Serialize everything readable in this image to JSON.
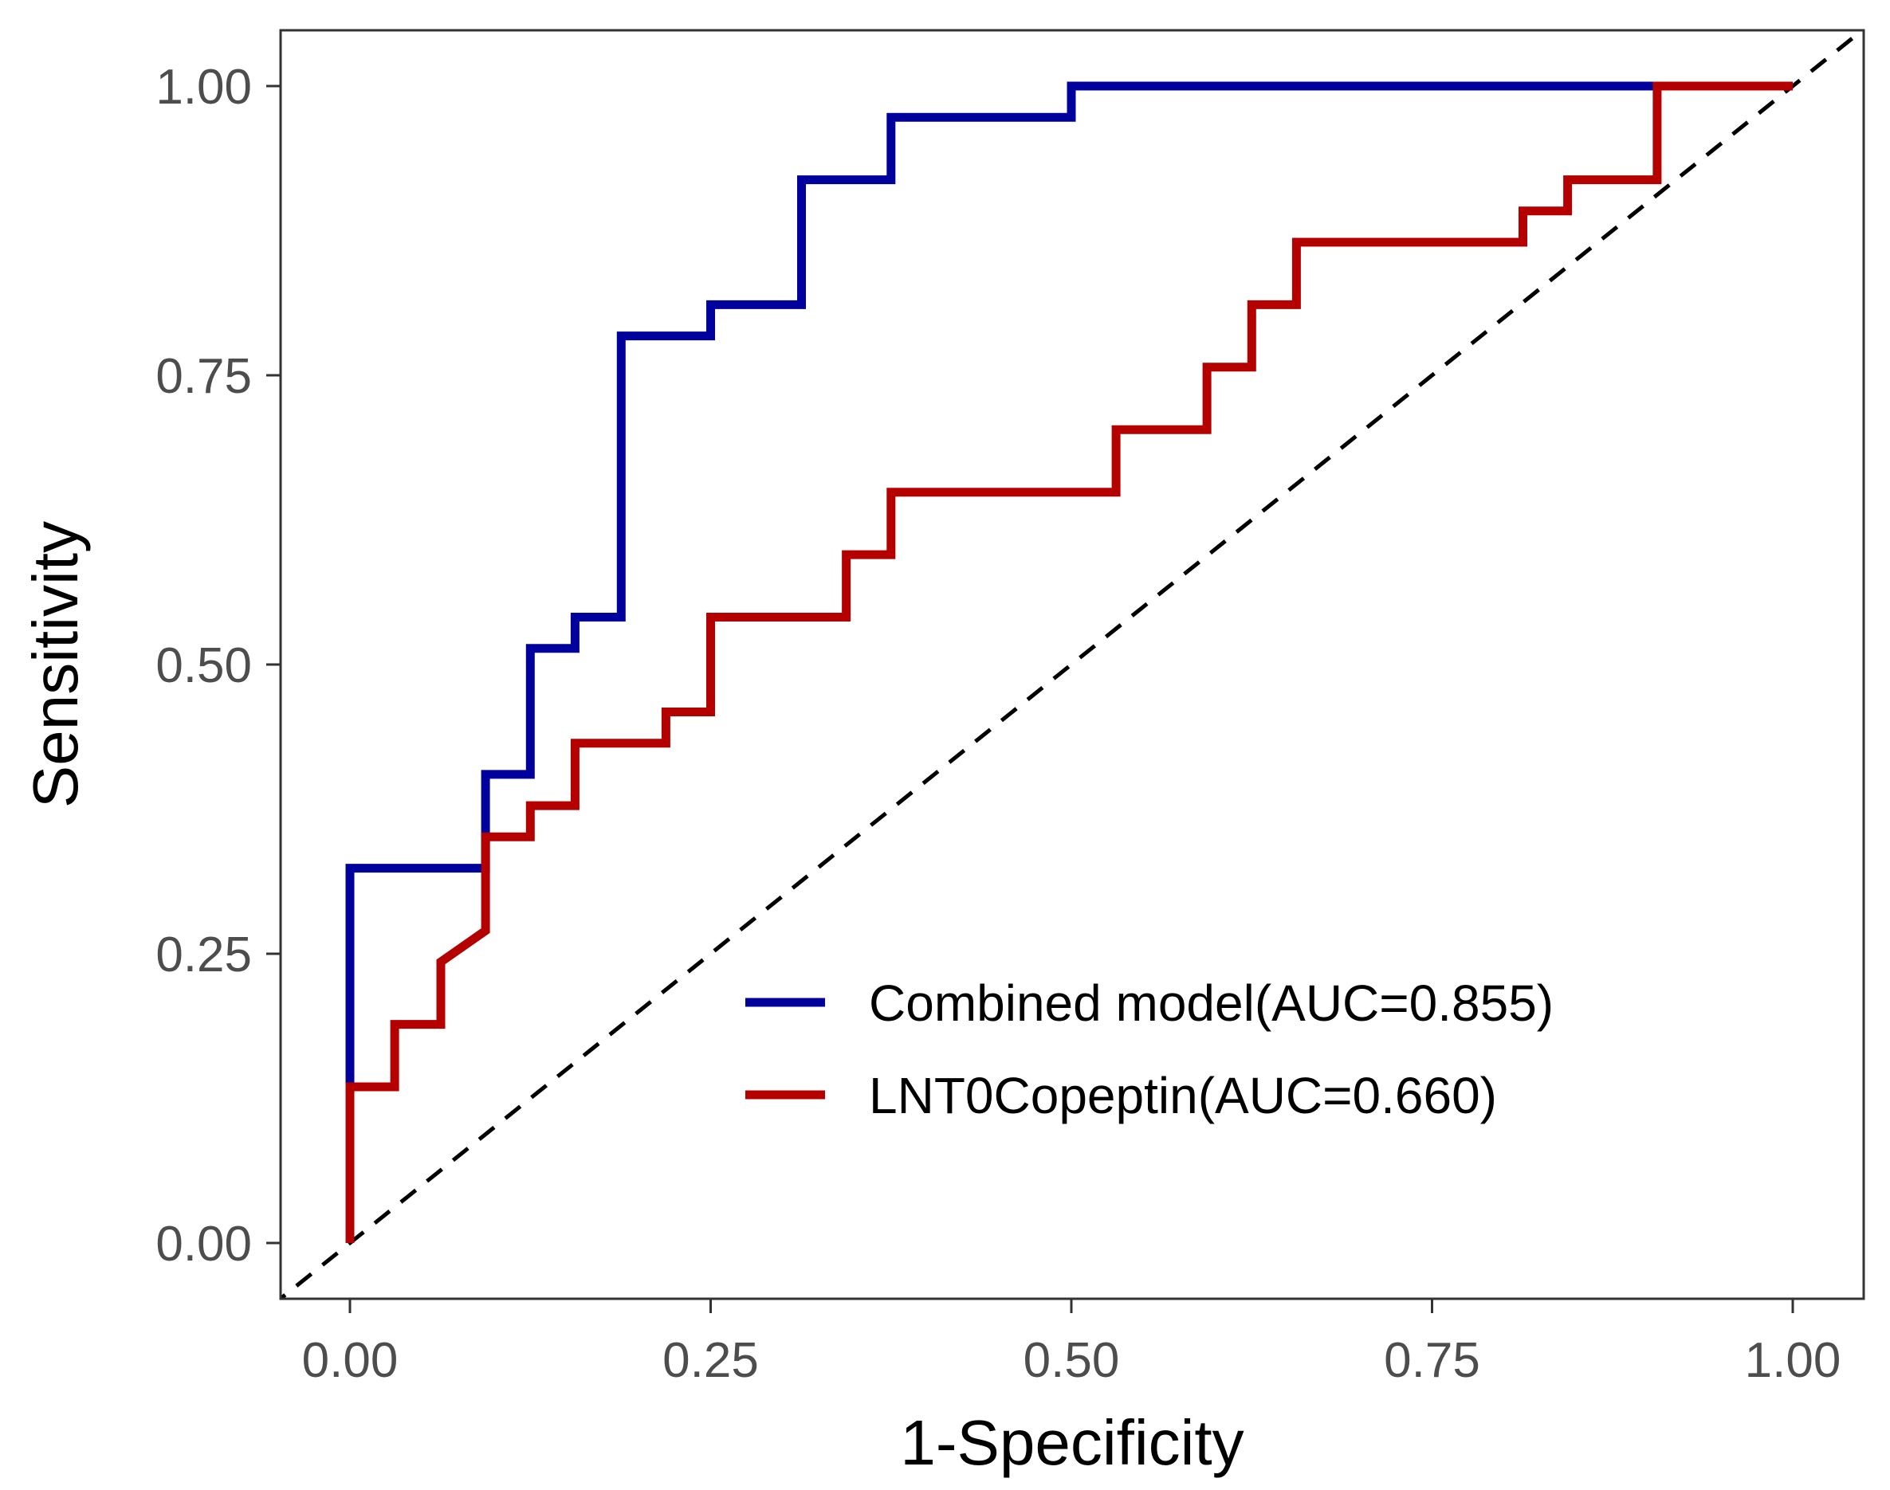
{
  "chart_data": {
    "type": "line",
    "title": "",
    "xlabel": "1-Specificity",
    "ylabel": "Sensitivity",
    "xlim": [
      0,
      1
    ],
    "ylim": [
      0,
      1
    ],
    "x_ticks": [
      "0.00",
      "0.25",
      "0.50",
      "0.75",
      "1.00"
    ],
    "y_ticks": [
      "0.00",
      "0.25",
      "0.50",
      "0.75",
      "1.00"
    ],
    "grid": false,
    "legend_position": "bottom-right",
    "reference_line": {
      "type": "diagonal",
      "style": "dashed",
      "color": "#000000"
    },
    "series": [
      {
        "name": "Combined model(AUC=0.855)",
        "color": "#00009c",
        "points": [
          [
            0.0,
            0.0
          ],
          [
            0.0,
            0.324
          ],
          [
            0.094,
            0.324
          ],
          [
            0.094,
            0.405
          ],
          [
            0.125,
            0.405
          ],
          [
            0.125,
            0.514
          ],
          [
            0.156,
            0.514
          ],
          [
            0.156,
            0.541
          ],
          [
            0.188,
            0.541
          ],
          [
            0.188,
            0.784
          ],
          [
            0.25,
            0.784
          ],
          [
            0.25,
            0.811
          ],
          [
            0.313,
            0.811
          ],
          [
            0.313,
            0.919
          ],
          [
            0.375,
            0.919
          ],
          [
            0.375,
            0.973
          ],
          [
            0.5,
            0.973
          ],
          [
            0.5,
            1.0
          ],
          [
            1.0,
            1.0
          ]
        ]
      },
      {
        "name": "LNT0Copeptin(AUC=0.660)",
        "color": "#b50000",
        "points": [
          [
            0.0,
            0.0
          ],
          [
            0.0,
            0.135
          ],
          [
            0.031,
            0.135
          ],
          [
            0.031,
            0.189
          ],
          [
            0.063,
            0.189
          ],
          [
            0.063,
            0.243
          ],
          [
            0.094,
            0.27
          ],
          [
            0.094,
            0.351
          ],
          [
            0.125,
            0.351
          ],
          [
            0.125,
            0.378
          ],
          [
            0.156,
            0.378
          ],
          [
            0.156,
            0.432
          ],
          [
            0.219,
            0.432
          ],
          [
            0.219,
            0.459
          ],
          [
            0.25,
            0.459
          ],
          [
            0.25,
            0.541
          ],
          [
            0.344,
            0.541
          ],
          [
            0.344,
            0.595
          ],
          [
            0.375,
            0.595
          ],
          [
            0.375,
            0.649
          ],
          [
            0.531,
            0.649
          ],
          [
            0.531,
            0.703
          ],
          [
            0.594,
            0.703
          ],
          [
            0.594,
            0.757
          ],
          [
            0.625,
            0.757
          ],
          [
            0.625,
            0.811
          ],
          [
            0.656,
            0.811
          ],
          [
            0.656,
            0.865
          ],
          [
            0.813,
            0.865
          ],
          [
            0.813,
            0.892
          ],
          [
            0.844,
            0.892
          ],
          [
            0.844,
            0.919
          ],
          [
            0.906,
            0.919
          ],
          [
            0.906,
            1.0
          ],
          [
            1.0,
            1.0
          ]
        ]
      }
    ]
  }
}
